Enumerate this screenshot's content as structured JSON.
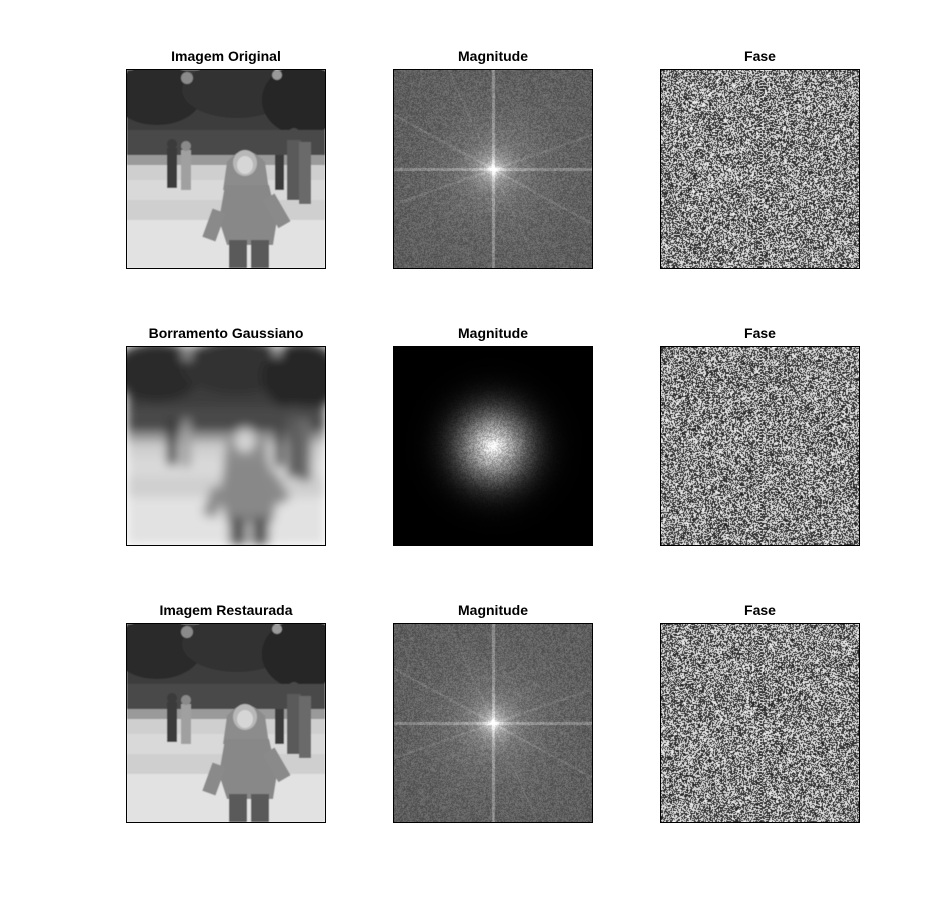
{
  "figure": {
    "rows": [
      {
        "panels": [
          {
            "title": "Imagem Original",
            "kind": "photo-sharp"
          },
          {
            "title": "Magnitude",
            "kind": "spectrum-full"
          },
          {
            "title": "Fase",
            "kind": "phase"
          }
        ]
      },
      {
        "panels": [
          {
            "title": "Borramento Gaussiano",
            "kind": "photo-blurred"
          },
          {
            "title": "Magnitude",
            "kind": "spectrum-gaussian"
          },
          {
            "title": "Fase",
            "kind": "phase"
          }
        ]
      },
      {
        "panels": [
          {
            "title": "Imagem Restaurada",
            "kind": "photo-sharp"
          },
          {
            "title": "Magnitude",
            "kind": "spectrum-full"
          },
          {
            "title": "Fase",
            "kind": "phase"
          }
        ]
      }
    ]
  }
}
